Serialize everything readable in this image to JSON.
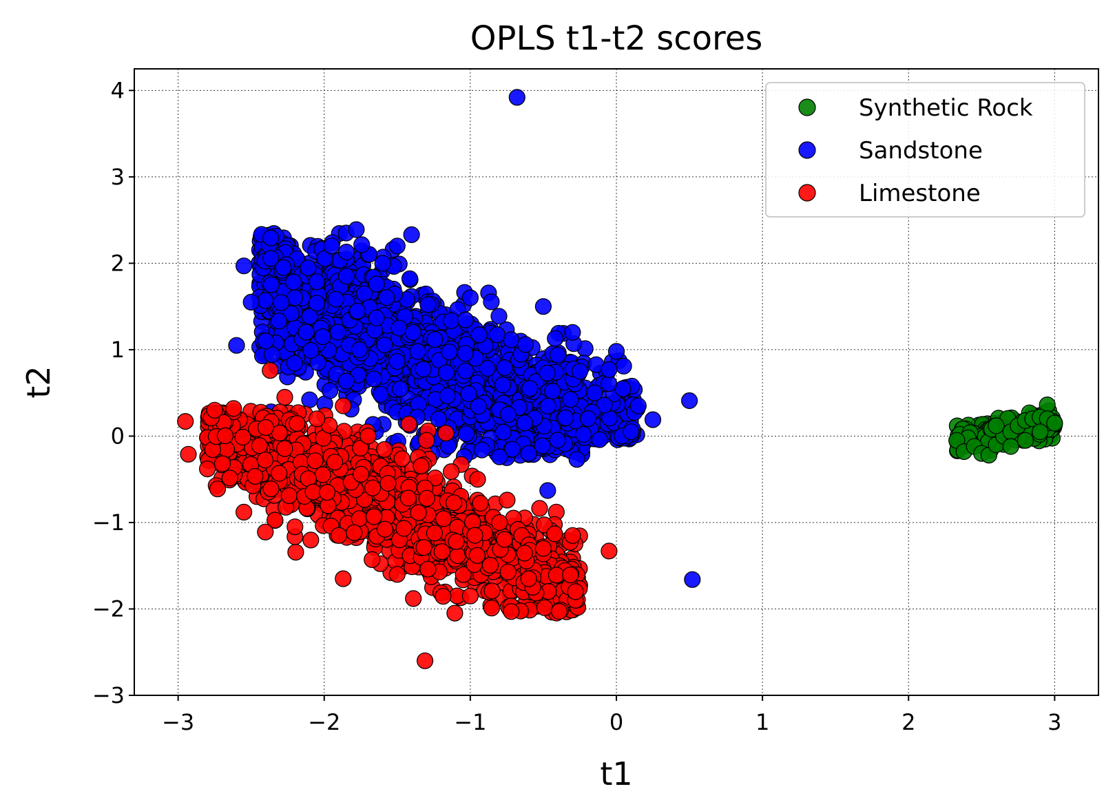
{
  "chart_data": {
    "type": "scatter",
    "title": "OPLS t1-t2 scores",
    "xlabel": "t1",
    "ylabel": "t2",
    "xlim": [
      -3.3,
      3.3
    ],
    "ylim": [
      -3.0,
      4.25
    ],
    "xticks": [
      -3,
      -2,
      -1,
      0,
      1,
      2,
      3
    ],
    "yticks": [
      -3,
      -2,
      -1,
      0,
      1,
      2,
      3,
      4
    ],
    "xtick_labels": [
      "−3",
      "−2",
      "−1",
      "0",
      "1",
      "2",
      "3"
    ],
    "ytick_labels": [
      "−3",
      "−2",
      "−1",
      "0",
      "1",
      "2",
      "3",
      "4"
    ],
    "grid": true,
    "legend_position": "top-right",
    "series": [
      {
        "name": "Synthetic Rock",
        "color": "#008000",
        "cluster": {
          "x_range": [
            2.33,
            3.0
          ],
          "y_center": 0.05,
          "y_spread": 0.14,
          "slope": 0.3,
          "count": 220
        },
        "points": [
          [
            2.33,
            -0.05
          ],
          [
            2.38,
            -0.18
          ],
          [
            2.45,
            -0.12
          ],
          [
            2.5,
            -0.2
          ],
          [
            2.55,
            -0.22
          ],
          [
            2.6,
            -0.1
          ],
          [
            2.65,
            0.0
          ],
          [
            2.7,
            0.05
          ],
          [
            2.75,
            0.12
          ],
          [
            2.8,
            0.18
          ],
          [
            2.85,
            0.2
          ],
          [
            2.9,
            0.22
          ],
          [
            2.95,
            0.2
          ],
          [
            3.0,
            0.15
          ],
          [
            2.6,
            0.12
          ],
          [
            2.7,
            -0.12
          ],
          [
            2.8,
            -0.05
          ],
          [
            2.9,
            0.05
          ]
        ]
      },
      {
        "name": "Sandstone",
        "color": "#0000ff",
        "cluster": {
          "center": [
            -1.1,
            0.95
          ],
          "count": 1600
        },
        "points": [
          [
            -0.68,
            3.92
          ],
          [
            -2.55,
            1.97
          ],
          [
            -2.6,
            1.05
          ],
          [
            0.5,
            0.41
          ],
          [
            -0.47,
            -0.63
          ],
          [
            0.52,
            -1.66
          ],
          [
            -0.27,
            -0.27
          ],
          [
            0.0,
            0.98
          ],
          [
            0.05,
            0.81
          ],
          [
            0.25,
            0.19
          ],
          [
            -0.05,
            0.77
          ],
          [
            -1.85,
            2.35
          ],
          [
            -1.78,
            2.39
          ],
          [
            -1.95,
            2.2
          ],
          [
            -2.28,
            1.95
          ],
          [
            -2.5,
            1.55
          ],
          [
            -0.5,
            1.5
          ],
          [
            -0.3,
            1.2
          ],
          [
            -0.15,
            0.5
          ],
          [
            0.1,
            0.05
          ],
          [
            -1.3,
            0.02
          ],
          [
            -2.1,
            0.42
          ],
          [
            -0.8,
            -0.24
          ],
          [
            -0.6,
            -0.2
          ],
          [
            -1.5,
            2.2
          ],
          [
            -1.6,
            2.0
          ],
          [
            -2.4,
            1.1
          ],
          [
            -0.25,
            0.75
          ],
          [
            0.15,
            0.35
          ],
          [
            -1.0,
            1.6
          ]
        ]
      },
      {
        "name": "Limestone",
        "color": "#ff0000",
        "cluster": {
          "center": [
            -1.45,
            -0.75
          ],
          "count": 1400
        },
        "points": [
          [
            -2.95,
            0.17
          ],
          [
            -2.93,
            -0.21
          ],
          [
            -2.37,
            0.76
          ],
          [
            -2.27,
            0.45
          ],
          [
            -1.87,
            0.35
          ],
          [
            -1.42,
            0.14
          ],
          [
            -1.31,
            -2.6
          ],
          [
            -0.05,
            -1.33
          ],
          [
            -1.87,
            -1.65
          ],
          [
            -1.39,
            -1.88
          ],
          [
            -0.28,
            -1.9
          ],
          [
            -0.28,
            -1.8
          ],
          [
            -0.72,
            -2.03
          ],
          [
            -0.3,
            -1.15
          ],
          [
            -2.75,
            0.3
          ],
          [
            -2.62,
            0.32
          ],
          [
            -2.8,
            -0.38
          ],
          [
            -2.55,
            -0.88
          ],
          [
            -2.2,
            -1.05
          ],
          [
            -1.9,
            -1.15
          ],
          [
            -1.5,
            -1.6
          ],
          [
            -1.0,
            -1.85
          ],
          [
            -0.6,
            -1.65
          ],
          [
            -0.5,
            -1.3
          ],
          [
            -0.95,
            -0.5
          ],
          [
            -1.3,
            -0.05
          ],
          [
            -1.7,
            0.0
          ],
          [
            -2.05,
            0.2
          ],
          [
            -2.4,
            0.1
          ],
          [
            -0.8,
            -1.0
          ]
        ]
      }
    ]
  }
}
